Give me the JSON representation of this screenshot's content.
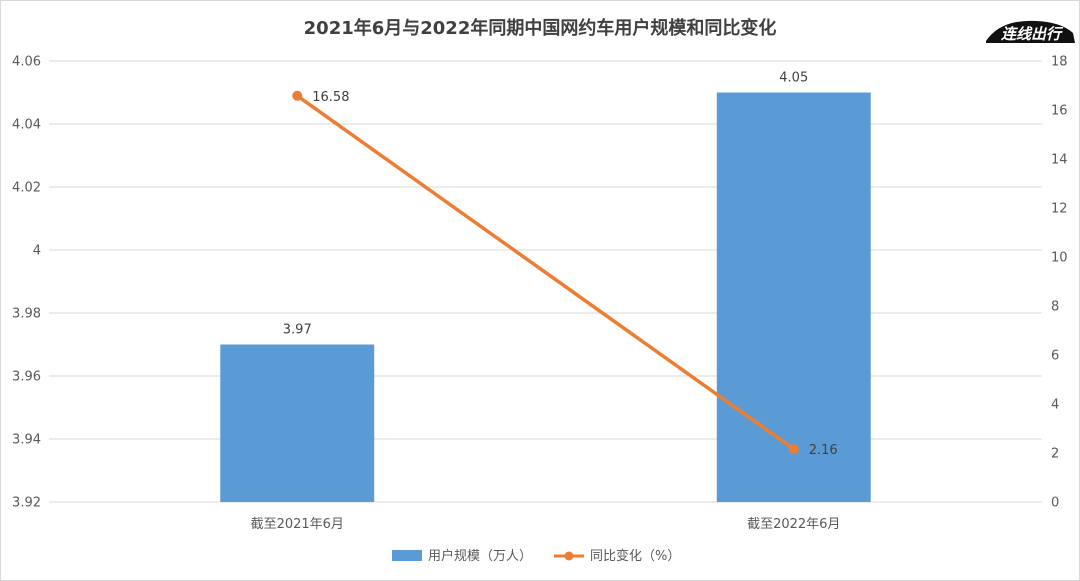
{
  "watermark": {
    "text": "连线出行"
  },
  "chart_data": {
    "type": "bar+line",
    "title": "2021年6月与2022年同期中国网约车用户规模和同比变化",
    "categories": [
      "截至2021年6月",
      "截至2022年6月"
    ],
    "series": [
      {
        "name": "用户规模（万人）",
        "type": "bar",
        "axis": "left",
        "color": "#5b9bd5",
        "values": [
          3.97,
          4.05
        ],
        "labels": [
          "3.97",
          "4.05"
        ]
      },
      {
        "name": "同比变化（%）",
        "type": "line",
        "axis": "right",
        "color": "#ed7d31",
        "values": [
          16.58,
          2.16
        ],
        "labels": [
          "16.58",
          "2.16"
        ]
      }
    ],
    "y_left": {
      "min": 3.92,
      "max": 4.06,
      "ticks": [
        3.92,
        3.94,
        3.96,
        3.98,
        4,
        4.02,
        4.04,
        4.06
      ],
      "tick_labels": [
        "3.92",
        "3.94",
        "3.96",
        "3.98",
        "4",
        "4.02",
        "4.04",
        "4.06"
      ]
    },
    "y_right": {
      "min": 0,
      "max": 18,
      "ticks": [
        0,
        2,
        4,
        6,
        8,
        10,
        12,
        14,
        16,
        18
      ],
      "tick_labels": [
        "0",
        "2",
        "4",
        "6",
        "8",
        "10",
        "12",
        "14",
        "16",
        "18"
      ]
    },
    "grid": true,
    "gridline_color": "#d9d9d9",
    "legend_position": "bottom"
  }
}
